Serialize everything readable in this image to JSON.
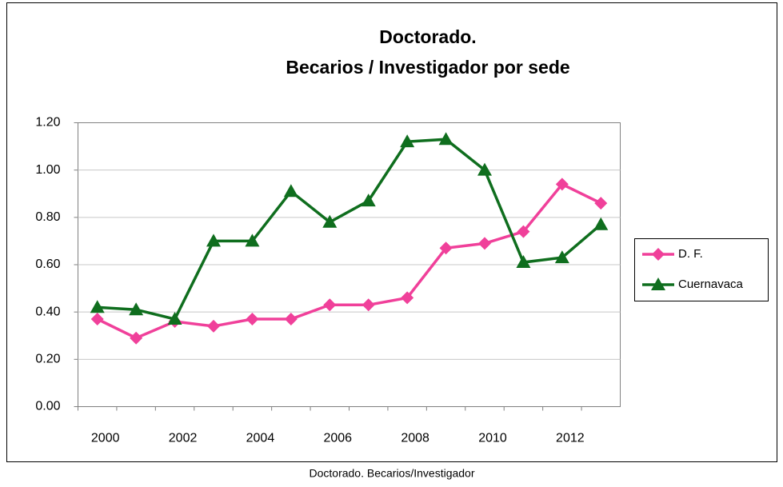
{
  "chart_data": {
    "type": "line",
    "title": [
      "Doctorado.",
      "Becarios / Investigador por sede"
    ],
    "caption": "Doctorado. Becarios/Investigador",
    "categories": [
      "2000",
      null,
      "2002",
      null,
      "2004",
      null,
      "2006",
      null,
      "2008",
      null,
      "2010",
      null,
      "2012",
      null
    ],
    "series": [
      {
        "name": "D. F.",
        "color": "#f0409a",
        "marker": "diamond",
        "values": [
          0.37,
          0.29,
          0.36,
          0.34,
          0.37,
          0.37,
          0.43,
          0.43,
          0.46,
          0.67,
          0.69,
          0.74,
          0.94,
          0.86
        ]
      },
      {
        "name": "Cuernavaca",
        "color": "#0f6e1e",
        "marker": "triangle",
        "values": [
          0.42,
          0.41,
          0.37,
          0.7,
          0.7,
          0.91,
          0.78,
          0.87,
          1.12,
          1.13,
          1.0,
          0.61,
          0.63,
          0.77
        ]
      }
    ],
    "ylim": [
      0,
      1.2
    ],
    "yticks": [
      {
        "value": 0,
        "label": "0.00"
      },
      {
        "value": 0.2,
        "label": "0.20"
      },
      {
        "value": 0.4,
        "label": "0.40"
      },
      {
        "value": 0.6,
        "label": "0.60"
      },
      {
        "value": 0.8,
        "label": "0.80"
      },
      {
        "value": 1.0,
        "label": "1.00"
      },
      {
        "value": 1.2,
        "label": "1.20"
      }
    ],
    "grid": true,
    "legend": "right"
  }
}
